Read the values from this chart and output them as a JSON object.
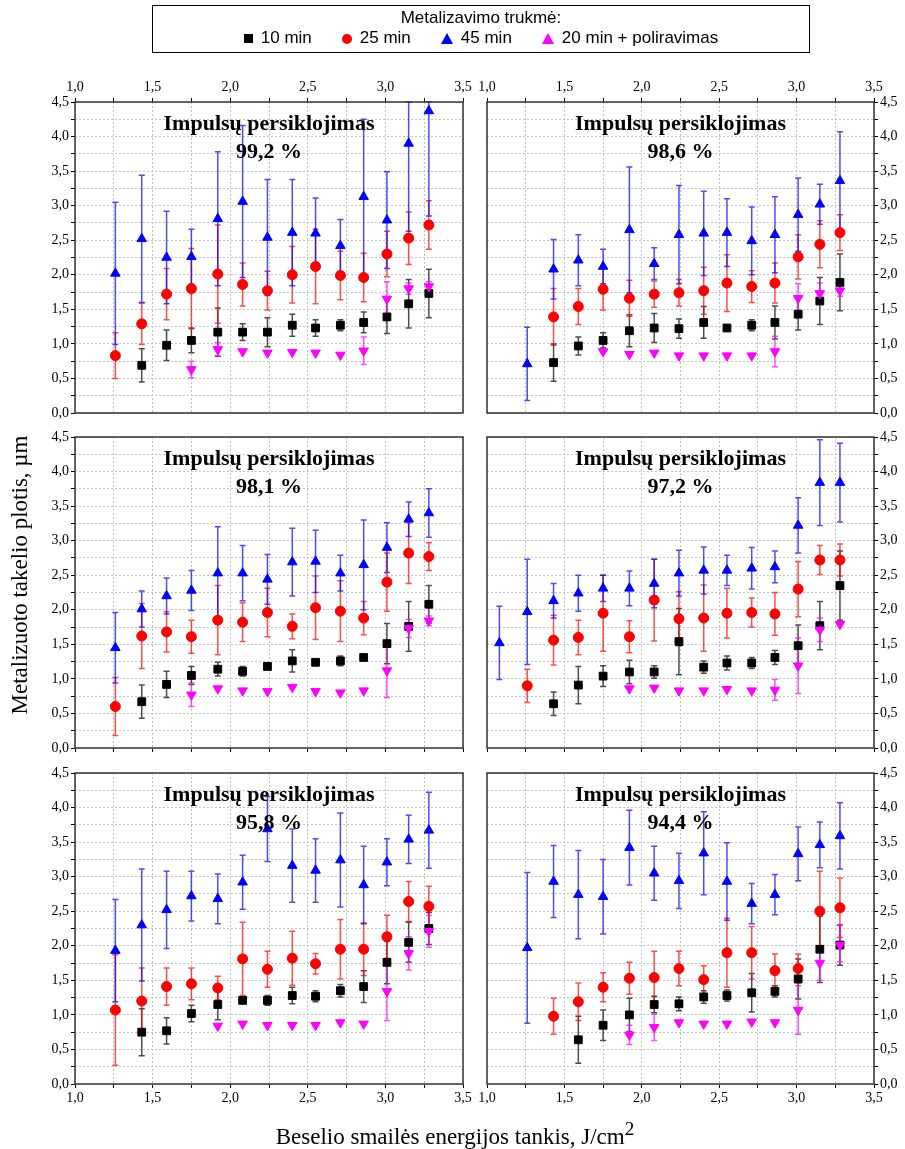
{
  "chart_data": [
    {
      "type": "scatter",
      "title": "Impulsų persiklojimas",
      "subtitle": "99,2 %",
      "legend": "top",
      "legend_title": "Metalizavimo trukmė:",
      "x": [
        1.26,
        1.43,
        1.59,
        1.75,
        1.92,
        2.08,
        2.24,
        2.4,
        2.55,
        2.71,
        2.86,
        3.01,
        3.15,
        3.28
      ],
      "xlim": [
        1,
        3.5
      ],
      "xticks": [
        {
          "value": 1,
          "label": "1,0"
        },
        {
          "value": 1.25,
          "label": null
        },
        {
          "value": 1.5,
          "label": "1,5"
        },
        {
          "value": 1.75,
          "label": null
        },
        {
          "value": 2,
          "label": "2,0"
        },
        {
          "value": 2.25,
          "label": null
        },
        {
          "value": 2.5,
          "label": "2,5"
        },
        {
          "value": 2.75,
          "label": null
        },
        {
          "value": 3,
          "label": "3,0"
        },
        {
          "value": 3.25,
          "label": null
        },
        {
          "value": 3.5,
          "label": "3,5"
        }
      ],
      "ylim": [
        0,
        4.5
      ],
      "yticks": [
        {
          "value": 0,
          "label": "0,0"
        },
        {
          "value": 0.25,
          "label": null
        },
        {
          "value": 0.5,
          "label": "0,5"
        },
        {
          "value": 0.75,
          "label": null
        },
        {
          "value": 1,
          "label": "1,0"
        },
        {
          "value": 1.25,
          "label": null
        },
        {
          "value": 1.5,
          "label": "1,5"
        },
        {
          "value": 1.75,
          "label": null
        },
        {
          "value": 2,
          "label": "2,0"
        },
        {
          "value": 2.25,
          "label": null
        },
        {
          "value": 2.5,
          "label": "2,5"
        },
        {
          "value": 2.75,
          "label": null
        },
        {
          "value": 3,
          "label": "3,0"
        },
        {
          "value": 3.25,
          "label": null
        },
        {
          "value": 3.5,
          "label": "3,5"
        },
        {
          "value": 3.75,
          "label": null
        },
        {
          "value": 4,
          "label": "4,0"
        },
        {
          "value": 4.25,
          "label": null
        },
        {
          "value": 4.5,
          "label": "4,5"
        }
      ],
      "grid": true,
      "series": [
        {
          "name": "10 min",
          "color": "#000000",
          "marker": "square",
          "values": [
            null,
            0.69,
            0.98,
            1.05,
            1.17,
            1.17,
            1.17,
            1.27,
            1.23,
            1.27,
            1.31,
            1.39,
            1.58,
            1.73
          ],
          "errors": [
            null,
            0.24,
            0.22,
            0.18,
            0.35,
            0.12,
            0.21,
            0.16,
            0.12,
            0.08,
            0.15,
            0.24,
            0.35,
            0.35
          ]
        },
        {
          "name": "25 min",
          "color": "#ff0000",
          "marker": "circle",
          "values": [
            0.83,
            1.29,
            1.72,
            1.8,
            2.01,
            1.86,
            1.77,
            2.0,
            2.12,
            1.99,
            1.96,
            2.3,
            2.53,
            2.72
          ],
          "errors": [
            0.33,
            0.3,
            0.37,
            0.58,
            0.71,
            0.31,
            0.28,
            0.41,
            0.54,
            0.35,
            0.35,
            0.33,
            0.38,
            0.35
          ]
        },
        {
          "name": "45 min",
          "color": "#0000ff",
          "marker": "triangle",
          "values": [
            2.02,
            2.52,
            2.25,
            2.26,
            2.81,
            3.06,
            2.54,
            2.61,
            2.6,
            2.42,
            3.13,
            2.79,
            3.9,
            4.37
          ],
          "errors": [
            1.03,
            0.92,
            0.67,
            0.4,
            0.97,
            1.1,
            0.84,
            0.77,
            0.51,
            0.38,
            1.12,
            0.7,
            [
              2.63,
              4.5
            ],
            [
              2.85,
              4.5
            ]
          ]
        },
        {
          "name": "20 min + poliravimas",
          "color": "#ff00ff",
          "marker": "triangle",
          "values": [
            null,
            null,
            null,
            0.63,
            0.92,
            0.89,
            0.87,
            0.88,
            0.87,
            0.84,
            0.9,
            1.65,
            1.8,
            1.83
          ],
          "errors": [
            null,
            null,
            null,
            0.12,
            0.1,
            null,
            null,
            null,
            null,
            null,
            0.2,
            0.25,
            0.08,
            0.07
          ]
        }
      ]
    },
    {
      "type": "scatter",
      "title": "Impulsų persiklojimas",
      "subtitle": "98,6 %",
      "x": [
        1.26,
        1.43,
        1.59,
        1.75,
        1.92,
        2.08,
        2.24,
        2.4,
        2.55,
        2.71,
        2.86,
        3.01,
        3.15,
        3.28
      ],
      "xlim": [
        1,
        3.5
      ],
      "xticks": [
        {
          "value": 1,
          "label": "1,0"
        },
        {
          "value": 1.25,
          "label": null
        },
        {
          "value": 1.5,
          "label": "1,5"
        },
        {
          "value": 1.75,
          "label": null
        },
        {
          "value": 2,
          "label": "2,0"
        },
        {
          "value": 2.25,
          "label": null
        },
        {
          "value": 2.5,
          "label": "2,5"
        },
        {
          "value": 2.75,
          "label": null
        },
        {
          "value": 3,
          "label": "3,0"
        },
        {
          "value": 3.25,
          "label": null
        },
        {
          "value": 3.5,
          "label": "3,5"
        }
      ],
      "ylim": [
        0,
        4.5
      ],
      "yticks": [
        {
          "value": 0,
          "label": "0,0"
        },
        {
          "value": 0.25,
          "label": null
        },
        {
          "value": 0.5,
          "label": "0,5"
        },
        {
          "value": 0.75,
          "label": null
        },
        {
          "value": 1,
          "label": "1,0"
        },
        {
          "value": 1.25,
          "label": null
        },
        {
          "value": 1.5,
          "label": "1,5"
        },
        {
          "value": 1.75,
          "label": null
        },
        {
          "value": 2,
          "label": "2,0"
        },
        {
          "value": 2.25,
          "label": null
        },
        {
          "value": 2.5,
          "label": "2,5"
        },
        {
          "value": 2.75,
          "label": null
        },
        {
          "value": 3,
          "label": "3,0"
        },
        {
          "value": 3.25,
          "label": null
        },
        {
          "value": 3.5,
          "label": "3,5"
        },
        {
          "value": 3.75,
          "label": null
        },
        {
          "value": 4,
          "label": "4,0"
        },
        {
          "value": 4.25,
          "label": null
        },
        {
          "value": 4.5,
          "label": "4,5"
        }
      ],
      "grid": true,
      "series": [
        {
          "color": "#000000",
          "marker": "square",
          "values": [
            null,
            0.73,
            0.97,
            1.05,
            1.19,
            1.23,
            1.22,
            1.31,
            1.23,
            1.27,
            1.31,
            1.43,
            1.62,
            1.89
          ],
          "errors": [
            null,
            0.27,
            0.13,
            0.11,
            0.23,
            0.21,
            0.14,
            0.23,
            null,
            0.08,
            0.24,
            0.23,
            0.34,
            0.41
          ]
        },
        {
          "color": "#ff0000",
          "marker": "circle",
          "values": [
            null,
            1.39,
            1.54,
            1.79,
            1.66,
            1.72,
            1.74,
            1.77,
            1.88,
            1.83,
            1.88,
            2.26,
            2.44,
            2.61
          ],
          "errors": [
            null,
            0.41,
            0.26,
            0.3,
            0.26,
            0.19,
            0.19,
            0.34,
            0.41,
            0.23,
            0.29,
            0.32,
            0.34,
            0.26
          ]
        },
        {
          "color": "#0000ff",
          "marker": "triangle",
          "values": [
            0.71,
            2.08,
            2.21,
            2.12,
            2.65,
            2.16,
            2.58,
            2.6,
            2.61,
            2.49,
            2.58,
            2.87,
            3.02,
            3.36
          ],
          "errors": [
            0.53,
            0.43,
            0.37,
            0.25,
            0.91,
            0.23,
            0.71,
            0.61,
            0.49,
            0.49,
            0.55,
            0.53,
            0.29,
            0.71
          ]
        },
        {
          "color": "#ff00ff",
          "marker": "triangle",
          "values": [
            null,
            null,
            null,
            0.89,
            0.85,
            0.87,
            0.83,
            0.83,
            0.83,
            0.83,
            0.89,
            1.66,
            1.73,
            1.77
          ],
          "errors": [
            null,
            null,
            null,
            null,
            null,
            null,
            null,
            null,
            null,
            null,
            0.22,
            0.21,
            0.15,
            0.08
          ]
        }
      ]
    },
    {
      "type": "scatter",
      "title": "Impulsų persiklojimas",
      "subtitle": "98,1 %",
      "ylabel": "Metalizuoto takelio plotis, µm",
      "tick_labels": "y",
      "x": [
        1.26,
        1.43,
        1.59,
        1.75,
        1.92,
        2.08,
        2.24,
        2.4,
        2.55,
        2.71,
        2.86,
        3.01,
        3.15,
        3.28
      ],
      "xlim": [
        1,
        3.5
      ],
      "xticks": [
        {
          "value": 1,
          "label": null
        },
        {
          "value": 1.25,
          "label": null
        },
        {
          "value": 1.5,
          "label": null
        },
        {
          "value": 1.75,
          "label": null
        },
        {
          "value": 2,
          "label": null
        },
        {
          "value": 2.25,
          "label": null
        },
        {
          "value": 2.5,
          "label": null
        },
        {
          "value": 2.75,
          "label": null
        },
        {
          "value": 3,
          "label": null
        },
        {
          "value": 3.25,
          "label": null
        },
        {
          "value": 3.5,
          "label": null
        }
      ],
      "ylim": [
        0,
        4.5
      ],
      "yticks": [
        {
          "value": 0,
          "label": "0,0"
        },
        {
          "value": 0.25,
          "label": null
        },
        {
          "value": 0.5,
          "label": "0,5"
        },
        {
          "value": 0.75,
          "label": null
        },
        {
          "value": 1,
          "label": "1,0"
        },
        {
          "value": 1.25,
          "label": null
        },
        {
          "value": 1.5,
          "label": "1,5"
        },
        {
          "value": 1.75,
          "label": null
        },
        {
          "value": 2,
          "label": "2,0"
        },
        {
          "value": 2.25,
          "label": null
        },
        {
          "value": 2.5,
          "label": "2,5"
        },
        {
          "value": 2.75,
          "label": null
        },
        {
          "value": 3,
          "label": "3,0"
        },
        {
          "value": 3.25,
          "label": null
        },
        {
          "value": 3.5,
          "label": "3,5"
        },
        {
          "value": 3.75,
          "label": null
        },
        {
          "value": 4,
          "label": "4,0"
        },
        {
          "value": 4.25,
          "label": null
        },
        {
          "value": 4.5,
          "label": "4,5"
        }
      ],
      "grid": true,
      "series": [
        {
          "color": "#000000",
          "marker": "square",
          "values": [
            null,
            0.67,
            0.92,
            1.05,
            1.14,
            1.11,
            1.18,
            1.26,
            1.24,
            1.26,
            1.31,
            1.51,
            1.76,
            2.08
          ],
          "errors": [
            null,
            0.24,
            0.19,
            0.13,
            0.1,
            0.07,
            null,
            0.16,
            null,
            0.07,
            null,
            0.29,
            0.36,
            0.27
          ]
        },
        {
          "color": "#ff0000",
          "marker": "circle",
          "values": [
            0.6,
            1.62,
            1.68,
            1.61,
            1.85,
            1.82,
            1.96,
            1.76,
            2.03,
            1.98,
            1.88,
            2.4,
            2.82,
            2.77
          ],
          "errors": [
            0.42,
            0.47,
            0.29,
            0.24,
            0.5,
            0.28,
            0.35,
            0.18,
            0.46,
            0.44,
            0.24,
            0.42,
            0.44,
            0.2
          ]
        },
        {
          "color": "#0000ff",
          "marker": "triangle",
          "values": [
            1.45,
            2.01,
            2.2,
            2.28,
            2.53,
            2.53,
            2.44,
            2.69,
            2.7,
            2.53,
            2.65,
            2.9,
            3.31,
            3.4
          ],
          "errors": [
            0.51,
            0.26,
            0.26,
            0.29,
            0.67,
            0.4,
            0.36,
            0.49,
            0.45,
            0.26,
            0.65,
            0.36,
            0.25,
            0.35
          ]
        },
        {
          "color": "#ff00ff",
          "marker": "triangle",
          "values": [
            null,
            null,
            null,
            0.77,
            0.86,
            0.83,
            0.82,
            0.88,
            0.82,
            0.8,
            0.83,
            1.12,
            1.73,
            1.84
          ],
          "errors": [
            null,
            null,
            null,
            0.17,
            null,
            null,
            null,
            null,
            null,
            null,
            null,
            0.39,
            0.13,
            0.07
          ]
        }
      ]
    },
    {
      "type": "scatter",
      "title": "Impulsų persiklojimas",
      "subtitle": "97,2 %",
      "tick_labels": "y",
      "x": [
        1.08,
        1.26,
        1.43,
        1.59,
        1.75,
        1.92,
        2.08,
        2.24,
        2.4,
        2.55,
        2.71,
        2.86,
        3.01,
        3.15,
        3.28
      ],
      "xlim": [
        1,
        3.5
      ],
      "xticks": [
        {
          "value": 1,
          "label": null
        },
        {
          "value": 1.25,
          "label": null
        },
        {
          "value": 1.5,
          "label": null
        },
        {
          "value": 1.75,
          "label": null
        },
        {
          "value": 2,
          "label": null
        },
        {
          "value": 2.25,
          "label": null
        },
        {
          "value": 2.5,
          "label": null
        },
        {
          "value": 2.75,
          "label": null
        },
        {
          "value": 3,
          "label": null
        },
        {
          "value": 3.25,
          "label": null
        },
        {
          "value": 3.5,
          "label": null
        }
      ],
      "ylim": [
        0,
        4.5
      ],
      "yticks": [
        {
          "value": 0,
          "label": "0,0"
        },
        {
          "value": 0.25,
          "label": null
        },
        {
          "value": 0.5,
          "label": "0,5"
        },
        {
          "value": 0.75,
          "label": null
        },
        {
          "value": 1,
          "label": "1,0"
        },
        {
          "value": 1.25,
          "label": null
        },
        {
          "value": 1.5,
          "label": "1,5"
        },
        {
          "value": 1.75,
          "label": null
        },
        {
          "value": 2,
          "label": "2,0"
        },
        {
          "value": 2.25,
          "label": null
        },
        {
          "value": 2.5,
          "label": "2,5"
        },
        {
          "value": 2.75,
          "label": null
        },
        {
          "value": 3,
          "label": "3,0"
        },
        {
          "value": 3.25,
          "label": null
        },
        {
          "value": 3.5,
          "label": "3,5"
        },
        {
          "value": 3.75,
          "label": null
        },
        {
          "value": 4,
          "label": "4,0"
        },
        {
          "value": 4.25,
          "label": null
        },
        {
          "value": 4.5,
          "label": "4,5"
        }
      ],
      "grid": true,
      "series": [
        {
          "color": "#000000",
          "marker": "square",
          "values": [
            null,
            null,
            0.64,
            0.91,
            1.04,
            1.1,
            1.1,
            1.54,
            1.17,
            1.23,
            1.23,
            1.31,
            1.48,
            1.77,
            2.35
          ],
          "errors": [
            null,
            null,
            0.17,
            0.27,
            0.15,
            0.17,
            0.09,
            0.48,
            0.09,
            0.1,
            0.08,
            0.1,
            0.3,
            0.35,
            0.5
          ]
        },
        {
          "color": "#ff0000",
          "marker": "circle",
          "values": [
            null,
            0.9,
            1.56,
            1.6,
            1.95,
            1.61,
            2.14,
            1.87,
            1.88,
            1.95,
            1.96,
            1.94,
            2.3,
            2.72,
            2.72
          ],
          "errors": [
            null,
            0.24,
            0.36,
            0.25,
            0.55,
            0.23,
            0.59,
            0.39,
            0.48,
            0.36,
            0.21,
            0.31,
            0.4,
            0.21,
            0.23
          ]
        },
        {
          "color": "#0000ff",
          "marker": "triangle",
          "values": [
            1.52,
            1.97,
            2.13,
            2.24,
            2.31,
            2.31,
            2.38,
            2.53,
            2.57,
            2.57,
            2.6,
            2.62,
            3.22,
            3.84,
            3.84
          ],
          "errors": [
            0.53,
            0.76,
            0.25,
            0.26,
            0.19,
            0.25,
            0.35,
            0.33,
            0.34,
            0.22,
            0.3,
            0.23,
            0.4,
            0.62,
            0.57
          ]
        },
        {
          "color": "#ff00ff",
          "marker": "triangle",
          "values": [
            null,
            null,
            null,
            null,
            null,
            0.86,
            0.87,
            0.83,
            0.83,
            0.85,
            0.83,
            0.84,
            1.19,
            1.71,
            1.79
          ],
          "errors": [
            null,
            null,
            null,
            null,
            null,
            null,
            null,
            null,
            null,
            null,
            null,
            0.15,
            0.4,
            0.17,
            null
          ]
        }
      ]
    },
    {
      "type": "scatter",
      "title": "Impulsų persiklojimas",
      "subtitle": "95,8 %",
      "xlabel": "Beselio smailės energijos tankis, J/cm$^{2}$",
      "x": [
        1.26,
        1.43,
        1.59,
        1.75,
        1.92,
        2.08,
        2.24,
        2.4,
        2.55,
        2.71,
        2.86,
        3.01,
        3.15,
        3.28
      ],
      "xlim": [
        1,
        3.5
      ],
      "xticks": [
        {
          "value": 1,
          "label": "1,0"
        },
        {
          "value": 1.25,
          "label": null
        },
        {
          "value": 1.5,
          "label": "1,5"
        },
        {
          "value": 1.75,
          "label": null
        },
        {
          "value": 2,
          "label": "2,0"
        },
        {
          "value": 2.25,
          "label": null
        },
        {
          "value": 2.5,
          "label": "2,5"
        },
        {
          "value": 2.75,
          "label": null
        },
        {
          "value": 3,
          "label": "3,0"
        },
        {
          "value": 3.25,
          "label": null
        },
        {
          "value": 3.5,
          "label": "3,5"
        }
      ],
      "ylim": [
        0,
        4.5
      ],
      "yticks": [
        {
          "value": 0,
          "label": "0,0"
        },
        {
          "value": 0.25,
          "label": null
        },
        {
          "value": 0.5,
          "label": "0,5"
        },
        {
          "value": 0.75,
          "label": null
        },
        {
          "value": 1,
          "label": "1,0"
        },
        {
          "value": 1.25,
          "label": null
        },
        {
          "value": 1.5,
          "label": "1,5"
        },
        {
          "value": 1.75,
          "label": null
        },
        {
          "value": 2,
          "label": "2,0"
        },
        {
          "value": 2.25,
          "label": null
        },
        {
          "value": 2.5,
          "label": "2,5"
        },
        {
          "value": 2.75,
          "label": null
        },
        {
          "value": 3,
          "label": "3,0"
        },
        {
          "value": 3.25,
          "label": null
        },
        {
          "value": 3.5,
          "label": "3,5"
        },
        {
          "value": 3.75,
          "label": null
        },
        {
          "value": 4,
          "label": "4,0"
        },
        {
          "value": 4.25,
          "label": null
        },
        {
          "value": 4.5,
          "label": "4,5"
        }
      ],
      "grid": true,
      "series": [
        {
          "color": "#000000",
          "marker": "square",
          "values": [
            null,
            0.75,
            0.77,
            1.02,
            1.15,
            1.21,
            1.21,
            1.28,
            1.27,
            1.35,
            1.41,
            1.76,
            2.05,
            2.25
          ],
          "errors": [
            null,
            0.34,
            0.19,
            0.12,
            0.22,
            null,
            0.07,
            0.12,
            0.08,
            0.09,
            0.23,
            0.31,
            0.29,
            0.23
          ]
        },
        {
          "color": "#ff0000",
          "marker": "circle",
          "values": [
            1.07,
            1.2,
            1.41,
            1.45,
            1.39,
            1.81,
            1.66,
            1.82,
            1.74,
            1.95,
            1.95,
            2.13,
            2.64,
            2.57
          ],
          "errors": [
            0.8,
            0.48,
            0.27,
            0.23,
            0.17,
            0.53,
            0.26,
            0.39,
            0.15,
            0.43,
            0.38,
            0.31,
            0.29,
            0.29
          ]
        },
        {
          "color": "#0000ff",
          "marker": "triangle",
          "values": [
            1.93,
            2.3,
            2.52,
            2.72,
            2.68,
            2.92,
            3.69,
            3.16,
            3.09,
            3.24,
            2.88,
            3.21,
            3.54,
            3.67
          ],
          "errors": [
            0.74,
            0.81,
            0.56,
            0.36,
            0.36,
            0.39,
            0.47,
            0.53,
            0.46,
            0.68,
            0.56,
            0.34,
            0.35,
            0.55
          ]
        },
        {
          "color": "#ff00ff",
          "marker": "triangle",
          "values": [
            null,
            null,
            null,
            null,
            0.84,
            0.87,
            0.85,
            0.85,
            0.85,
            0.89,
            0.87,
            1.34,
            1.89,
            2.21
          ],
          "errors": [
            null,
            null,
            null,
            null,
            null,
            null,
            null,
            null,
            null,
            null,
            null,
            0.42,
            0.24,
            0.23
          ]
        }
      ]
    },
    {
      "type": "scatter",
      "title": "Impulsų persiklojimas",
      "subtitle": "94,4 %",
      "x": [
        1.26,
        1.43,
        1.59,
        1.75,
        1.92,
        2.08,
        2.24,
        2.4,
        2.55,
        2.71,
        2.86,
        3.01,
        3.15,
        3.28
      ],
      "xlim": [
        1,
        3.5
      ],
      "xticks": [
        {
          "value": 1,
          "label": "1,0"
        },
        {
          "value": 1.25,
          "label": null
        },
        {
          "value": 1.5,
          "label": "1,5"
        },
        {
          "value": 1.75,
          "label": null
        },
        {
          "value": 2,
          "label": "2,0"
        },
        {
          "value": 2.25,
          "label": null
        },
        {
          "value": 2.5,
          "label": "2,5"
        },
        {
          "value": 2.75,
          "label": null
        },
        {
          "value": 3,
          "label": "3,0"
        },
        {
          "value": 3.25,
          "label": null
        },
        {
          "value": 3.5,
          "label": "3,5"
        }
      ],
      "ylim": [
        0,
        4.5
      ],
      "yticks": [
        {
          "value": 0,
          "label": "0,0"
        },
        {
          "value": 0.25,
          "label": null
        },
        {
          "value": 0.5,
          "label": "0,5"
        },
        {
          "value": 0.75,
          "label": null
        },
        {
          "value": 1,
          "label": "1,0"
        },
        {
          "value": 1.25,
          "label": null
        },
        {
          "value": 1.5,
          "label": "1,5"
        },
        {
          "value": 1.75,
          "label": null
        },
        {
          "value": 2,
          "label": "2,0"
        },
        {
          "value": 2.25,
          "label": null
        },
        {
          "value": 2.5,
          "label": "2,5"
        },
        {
          "value": 2.75,
          "label": null
        },
        {
          "value": 3,
          "label": "3,0"
        },
        {
          "value": 3.25,
          "label": null
        },
        {
          "value": 3.5,
          "label": "3,5"
        },
        {
          "value": 3.75,
          "label": null
        },
        {
          "value": 4,
          "label": "4,0"
        },
        {
          "value": 4.25,
          "label": null
        },
        {
          "value": 4.5,
          "label": "4,5"
        }
      ],
      "grid": true,
      "series": [
        {
          "color": "#000000",
          "marker": "square",
          "values": [
            null,
            null,
            0.64,
            0.85,
            1.0,
            1.15,
            1.16,
            1.26,
            1.28,
            1.32,
            1.34,
            1.52,
            1.95,
            2.01
          ],
          "errors": [
            null,
            null,
            0.34,
            0.22,
            0.24,
            0.12,
            0.1,
            0.09,
            0.08,
            0.28,
            0.08,
            0.29,
            0.48,
            0.29
          ]
        },
        {
          "color": "#ff0000",
          "marker": "circle",
          "values": [
            null,
            0.98,
            1.19,
            1.4,
            1.53,
            1.54,
            1.67,
            1.51,
            1.9,
            1.9,
            1.64,
            1.67,
            2.5,
            2.55
          ],
          "errors": [
            null,
            0.26,
            0.27,
            0.21,
            0.23,
            0.38,
            0.25,
            0.2,
            0.5,
            0.38,
            0.24,
            0.21,
            0.58,
            0.43
          ]
        },
        {
          "color": "#0000ff",
          "marker": "triangle",
          "values": [
            1.97,
            2.93,
            2.74,
            2.71,
            3.42,
            3.05,
            2.94,
            3.34,
            2.93,
            2.61,
            2.74,
            3.33,
            3.46,
            3.59
          ],
          "errors": [
            1.09,
            0.52,
            0.64,
            0.54,
            0.54,
            0.39,
            0.4,
            0.6,
            0.56,
            0.29,
            0.29,
            0.39,
            0.33,
            0.48
          ]
        },
        {
          "color": "#ff00ff",
          "marker": "triangle",
          "values": [
            null,
            null,
            null,
            null,
            0.71,
            0.82,
            0.89,
            0.87,
            0.87,
            0.9,
            0.89,
            1.07,
            1.75,
            2.01
          ],
          "errors": [
            null,
            null,
            null,
            null,
            0.14,
            0.19,
            null,
            null,
            null,
            null,
            null,
            0.35,
            0.25,
            [
              1.77,
              2.3
            ]
          ]
        }
      ]
    }
  ]
}
